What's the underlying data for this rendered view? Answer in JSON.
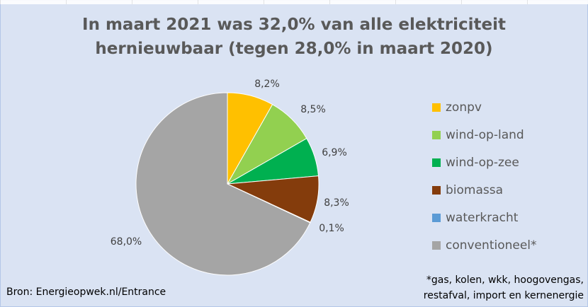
{
  "chart_data": {
    "type": "pie",
    "title": "In maart 2021 was 32,0% van alle elektriciteit hernieuwbaar (tegen 28,0% in maart 2020)",
    "title_lines": [
      "In maart 2021 was 32,0% van alle elektriciteit",
      "hernieuwbaar (tegen 28,0% in maart 2020)"
    ],
    "slices": [
      {
        "label": "zonpv",
        "value": 8.2,
        "value_label": "8,2%",
        "color": "#ffc000"
      },
      {
        "label": "wind-op-land",
        "value": 8.5,
        "value_label": "8,5%",
        "color": "#92d050"
      },
      {
        "label": "wind-op-zee",
        "value": 6.9,
        "value_label": "6,9%",
        "color": "#00b050"
      },
      {
        "label": "biomassa",
        "value": 8.3,
        "value_label": "8,3%",
        "color": "#843c0c"
      },
      {
        "label": "waterkracht",
        "value": 0.1,
        "value_label": "0,1%",
        "color": "#5b9bd5"
      },
      {
        "label": "conventioneel*",
        "value": 68.0,
        "value_label": "68,0%",
        "color": "#a5a5a5"
      }
    ],
    "legend_position": "right",
    "start_angle": "12 o'clock, clockwise"
  },
  "source": "Bron: Energieopwek.nl/Entrance",
  "footnote_lines": [
    "*gas, kolen, wkk, hoogovengas,",
    "restafval, import en kernenergie"
  ],
  "background_color": "#dae3f3"
}
